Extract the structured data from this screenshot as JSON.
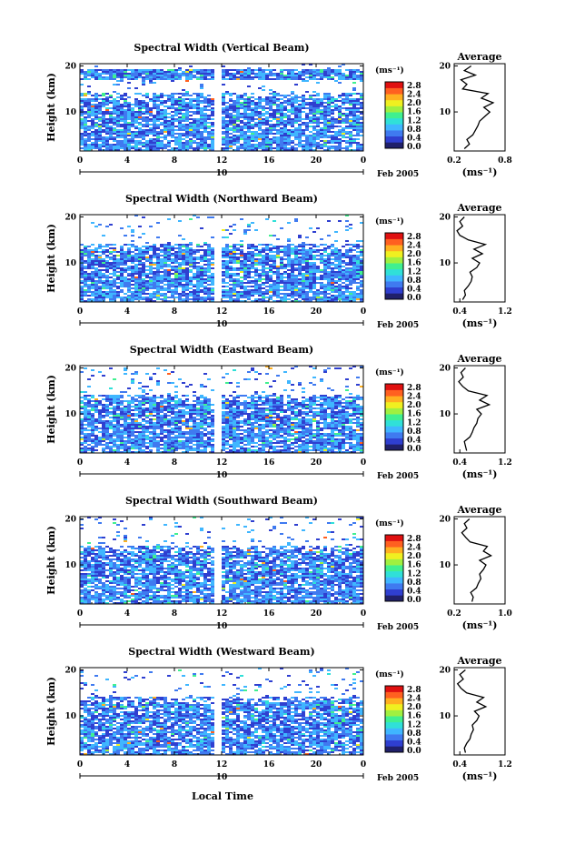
{
  "figure": {
    "x_axis_label": "Local Time",
    "date_label": "Feb 2005",
    "day_label": "10"
  },
  "colors": {
    "scale": [
      "#20206a",
      "#2f3fd0",
      "#3f7af0",
      "#3fb6ff",
      "#30e0d8",
      "#40f090",
      "#a0f040",
      "#f0f020",
      "#ffb020",
      "#ff6020",
      "#e01010"
    ]
  },
  "chart_data": [
    {
      "type": "heatmap",
      "title": "Spectral Width (Vertical Beam)",
      "ylabel": "Height (km)",
      "x_ticks": [
        "0",
        "4",
        "8",
        "12",
        "16",
        "20",
        "0"
      ],
      "xlim": [
        0,
        24
      ],
      "y_ticks": [
        "20",
        "10"
      ],
      "ylim": [
        1.5,
        20.5
      ],
      "colorbar": {
        "unit": "(ms⁻¹)",
        "ticks": [
          "2.8",
          "2.4",
          "2.0",
          "1.6",
          "1.2",
          "0.8",
          "0.4",
          "0.0"
        ]
      },
      "profile": {
        "title": "Average",
        "xlabel": "(ms⁻¹)",
        "x_ticks": [
          "0.2",
          "0.8"
        ],
        "xlim": [
          0.2,
          0.8
        ],
        "y_ticks": [
          "20",
          "10"
        ],
        "heights": [
          2,
          3,
          4,
          5,
          6,
          7,
          8,
          9,
          10,
          11,
          12,
          13,
          14,
          15,
          16,
          17,
          18,
          19,
          20
        ],
        "values": [
          0.32,
          0.38,
          0.35,
          0.42,
          0.45,
          0.48,
          0.5,
          0.56,
          0.62,
          0.55,
          0.66,
          0.52,
          0.6,
          0.3,
          0.35,
          0.28,
          0.45,
          0.32,
          0.4
        ]
      }
    },
    {
      "type": "heatmap",
      "title": "Spectral Width (Northward Beam)",
      "ylabel": "Height (km)",
      "x_ticks": [
        "0",
        "4",
        "8",
        "12",
        "16",
        "20",
        "0"
      ],
      "xlim": [
        0,
        24
      ],
      "y_ticks": [
        "20",
        "10"
      ],
      "ylim": [
        1.5,
        20.5
      ],
      "colorbar": {
        "unit": "(ms⁻¹)",
        "ticks": [
          "2.8",
          "2.4",
          "2.0",
          "1.6",
          "1.2",
          "0.8",
          "0.4",
          "0.0"
        ]
      },
      "profile": {
        "title": "Average",
        "xlabel": "(ms⁻¹)",
        "x_ticks": [
          "0.4",
          "1.2"
        ],
        "xlim": [
          0.3,
          1.2
        ],
        "y_ticks": [
          "20",
          "10"
        ],
        "heights": [
          2,
          3,
          4,
          5,
          6,
          7,
          8,
          9,
          10,
          11,
          12,
          13,
          14,
          15,
          16,
          17,
          18,
          19,
          20
        ],
        "values": [
          0.45,
          0.5,
          0.48,
          0.55,
          0.6,
          0.62,
          0.58,
          0.7,
          0.75,
          0.62,
          0.8,
          0.65,
          0.85,
          0.55,
          0.4,
          0.35,
          0.45,
          0.4,
          0.48
        ]
      }
    },
    {
      "type": "heatmap",
      "title": "Spectral Width (Eastward Beam)",
      "ylabel": "Height (km)",
      "x_ticks": [
        "0",
        "4",
        "8",
        "12",
        "16",
        "20",
        "0"
      ],
      "xlim": [
        0,
        24
      ],
      "y_ticks": [
        "20",
        "10"
      ],
      "ylim": [
        1.5,
        20.5
      ],
      "colorbar": {
        "unit": "(ms⁻¹)",
        "ticks": [
          "2.8",
          "2.4",
          "2.0",
          "1.6",
          "1.2",
          "0.8",
          "0.4",
          "0.0"
        ]
      },
      "profile": {
        "title": "Average",
        "xlabel": "(ms⁻¹)",
        "x_ticks": [
          "0.4",
          "1.2"
        ],
        "xlim": [
          0.3,
          1.2
        ],
        "y_ticks": [
          "20",
          "10"
        ],
        "heights": [
          2,
          3,
          4,
          5,
          6,
          7,
          8,
          9,
          10,
          11,
          12,
          13,
          14,
          15,
          16,
          17,
          18,
          19,
          20
        ],
        "values": [
          0.52,
          0.5,
          0.48,
          0.58,
          0.62,
          0.65,
          0.7,
          0.72,
          0.78,
          0.7,
          0.92,
          0.75,
          0.88,
          0.55,
          0.45,
          0.38,
          0.46,
          0.42,
          0.5
        ]
      }
    },
    {
      "type": "heatmap",
      "title": "Spectral Width (Southward Beam)",
      "ylabel": "Height (km)",
      "x_ticks": [
        "0",
        "4",
        "8",
        "12",
        "16",
        "20",
        "0"
      ],
      "xlim": [
        0,
        24
      ],
      "y_ticks": [
        "20",
        "10"
      ],
      "ylim": [
        1.5,
        20.5
      ],
      "colorbar": {
        "unit": "(ms⁻¹)",
        "ticks": [
          "2.8",
          "2.4",
          "2.0",
          "1.6",
          "1.2",
          "0.8",
          "0.4",
          "0.0"
        ]
      },
      "profile": {
        "title": "Average",
        "xlabel": "(ms⁻¹)",
        "x_ticks": [
          "0.2",
          "1.0"
        ],
        "xlim": [
          0.2,
          1.0
        ],
        "y_ticks": [
          "20",
          "10"
        ],
        "heights": [
          2,
          3,
          4,
          5,
          6,
          7,
          8,
          9,
          10,
          11,
          12,
          13,
          14,
          15,
          16,
          17,
          18,
          19,
          20
        ],
        "values": [
          0.48,
          0.5,
          0.46,
          0.55,
          0.58,
          0.62,
          0.6,
          0.66,
          0.7,
          0.6,
          0.78,
          0.66,
          0.72,
          0.45,
          0.38,
          0.32,
          0.4,
          0.36,
          0.44
        ]
      }
    },
    {
      "type": "heatmap",
      "title": "Spectral Width (Westward Beam)",
      "ylabel": "Height (km)",
      "x_ticks": [
        "0",
        "4",
        "8",
        "12",
        "16",
        "20",
        "0"
      ],
      "xlim": [
        0,
        24
      ],
      "y_ticks": [
        "20",
        "10"
      ],
      "ylim": [
        1.5,
        20.5
      ],
      "colorbar": {
        "unit": "(ms⁻¹)",
        "ticks": [
          "2.8",
          "2.4",
          "2.0",
          "1.6",
          "1.2",
          "0.8",
          "0.4",
          "0.0"
        ]
      },
      "profile": {
        "title": "Average",
        "xlabel": "(ms⁻¹)",
        "x_ticks": [
          "0.4",
          "1.2"
        ],
        "xlim": [
          0.3,
          1.2
        ],
        "y_ticks": [
          "20",
          "10"
        ],
        "heights": [
          2,
          3,
          4,
          5,
          6,
          7,
          8,
          9,
          10,
          11,
          12,
          13,
          14,
          15,
          16,
          17,
          18,
          19,
          20
        ],
        "values": [
          0.5,
          0.48,
          0.52,
          0.58,
          0.6,
          0.64,
          0.62,
          0.7,
          0.74,
          0.66,
          0.86,
          0.7,
          0.82,
          0.52,
          0.42,
          0.36,
          0.46,
          0.4,
          0.5
        ]
      }
    }
  ]
}
